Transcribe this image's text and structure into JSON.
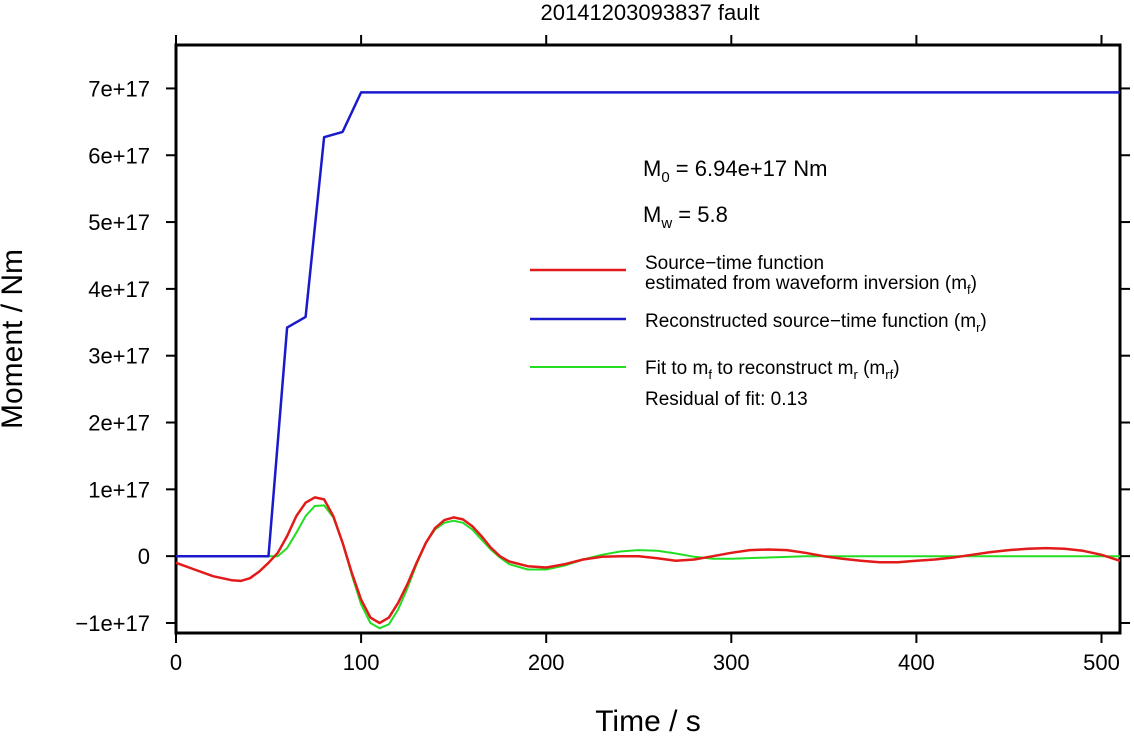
{
  "chart_data": {
    "type": "line",
    "title": "20141203093837 fault",
    "xlabel": "Time / s",
    "ylabel": "Moment / Nm",
    "xlim": [
      0,
      510
    ],
    "ylim": [
      -1.15e+17,
      7.65e+17
    ],
    "x_ticks": [
      0,
      100,
      200,
      300,
      400,
      500
    ],
    "x_tick_labels": [
      "0",
      "100",
      "200",
      "300",
      "400",
      "500"
    ],
    "y_ticks": [
      -1e+17,
      0,
      1e+17,
      2e+17,
      3e+17,
      4e+17,
      5e+17,
      6e+17,
      7e+17
    ],
    "y_tick_labels": [
      "−1e+17",
      "0",
      "1e+17",
      "2e+17",
      "3e+17",
      "4e+17",
      "5e+17",
      "6e+17",
      "7e+17"
    ],
    "grid": false,
    "legend_position": "right",
    "annotations": {
      "m0": {
        "base": "M",
        "sub": "0",
        "text": " = 6.94e+17 Nm"
      },
      "mw": {
        "base": "M",
        "sub": "w",
        "text": " = 5.8"
      }
    },
    "legend": [
      {
        "series": "stf",
        "line1": "Source−time function",
        "line2_prefix": "estimated from waveform inversion (m",
        "line2_sub": "f",
        "line2_suffix": ")"
      },
      {
        "series": "reconstructed",
        "line1_prefix": "Reconstructed source−time function (m",
        "line1_sub": "r",
        "line1_suffix": ")"
      },
      {
        "series": "fit",
        "line1_prefix": "Fit to m",
        "line1_sub1": "f",
        "line1_mid": " to reconstruct m",
        "line1_sub2": "r",
        "line1_mid2": " (m",
        "line1_sub3": "rf",
        "line1_suffix": ")",
        "line2": "Residual of fit: 0.13"
      }
    ],
    "series": [
      {
        "id": "reconstructed",
        "color": "#1a1acc",
        "x": [
          0,
          50,
          60,
          70,
          80,
          90,
          100,
          510
        ],
        "y": [
          0,
          0,
          3.42e+17,
          3.58e+17,
          6.27e+17,
          6.35e+17,
          6.94e+17,
          6.94e+17
        ]
      },
      {
        "id": "stf",
        "color": "#e31a1a",
        "x": [
          0,
          10,
          20,
          30,
          35,
          40,
          45,
          50,
          55,
          60,
          65,
          70,
          75,
          80,
          85,
          90,
          95,
          100,
          105,
          110,
          115,
          120,
          125,
          130,
          135,
          140,
          145,
          150,
          155,
          160,
          165,
          170,
          175,
          180,
          190,
          200,
          210,
          220,
          230,
          240,
          250,
          260,
          270,
          280,
          290,
          300,
          310,
          320,
          330,
          340,
          350,
          360,
          370,
          380,
          390,
          400,
          410,
          420,
          430,
          440,
          450,
          460,
          470,
          480,
          490,
          500,
          510
        ],
        "y": [
          -1e+16,
          -2e+16,
          -3e+16,
          -3.6e+16,
          -3.7e+16,
          -3.3e+16,
          -2.3e+16,
          -1e+16,
          5000000000000000.0,
          3e+16,
          6e+16,
          8e+16,
          8.8e+16,
          8.5e+16,
          6e+16,
          2e+16,
          -2.5e+16,
          -6.5e+16,
          -9.2e+16,
          -1e+17,
          -9.2e+16,
          -7e+16,
          -4.2e+16,
          -1e+16,
          2e+16,
          4.2e+16,
          5.4e+16,
          5.8e+16,
          5.5e+16,
          4.5e+16,
          3e+16,
          1.3e+16,
          0.0,
          -8000000000000000.0,
          -1.5e+16,
          -1.7e+16,
          -1.2e+16,
          -5000000000000000.0,
          -1000000000000000.0,
          0.0,
          0.0,
          -3000000000000000.0,
          -7000000000000000.0,
          -5000000000000000.0,
          0.0,
          5000000000000000.0,
          9000000000000000.0,
          1e+16,
          9000000000000000.0,
          5000000000000000.0,
          0.0,
          -4000000000000000.0,
          -7000000000000000.0,
          -9000000000000000.0,
          -9000000000000000.0,
          -7000000000000000.0,
          -5000000000000000.0,
          -2000000000000000.0,
          2000000000000000.0,
          6000000000000000.0,
          9000000000000000.0,
          1.1e+16,
          1.2e+16,
          1.1e+16,
          8000000000000000.0,
          2000000000000000.0,
          -7000000000000000.0
        ]
      },
      {
        "id": "fit",
        "color": "#22dd22",
        "x": [
          0,
          50,
          55,
          60,
          65,
          70,
          75,
          80,
          85,
          90,
          95,
          100,
          105,
          110,
          115,
          120,
          125,
          130,
          135,
          140,
          145,
          150,
          155,
          160,
          165,
          170,
          175,
          180,
          190,
          200,
          210,
          220,
          230,
          240,
          250,
          260,
          270,
          280,
          290,
          300,
          320,
          340,
          360,
          380,
          400,
          420,
          440,
          460,
          480,
          500,
          510
        ],
        "y": [
          0,
          0,
          0.0,
          1.2e+16,
          3.5e+16,
          6e+16,
          7.5e+16,
          7.6e+16,
          5.8e+16,
          2e+16,
          -2.8e+16,
          -7.2e+16,
          -1e+17,
          -1.08e+17,
          -1.02e+17,
          -8e+16,
          -4.8e+16,
          -1.2e+16,
          2e+16,
          4e+16,
          5e+16,
          5.3e+16,
          5e+16,
          4e+16,
          2.5e+16,
          1e+16,
          -2000000000000000.0,
          -1.2e+16,
          -2e+16,
          -2e+16,
          -1.4e+16,
          -5000000000000000.0,
          2000000000000000.0,
          7000000000000000.0,
          9000000000000000.0,
          8000000000000000.0,
          4000000000000000.0,
          -1000000000000000.0,
          -4000000000000000.0,
          -4000000000000000.0,
          -2000000000000000.0,
          0.0,
          0.0,
          0.0,
          0.0,
          0.0,
          0.0,
          0.0,
          0.0,
          0.0,
          0.0
        ]
      }
    ]
  }
}
